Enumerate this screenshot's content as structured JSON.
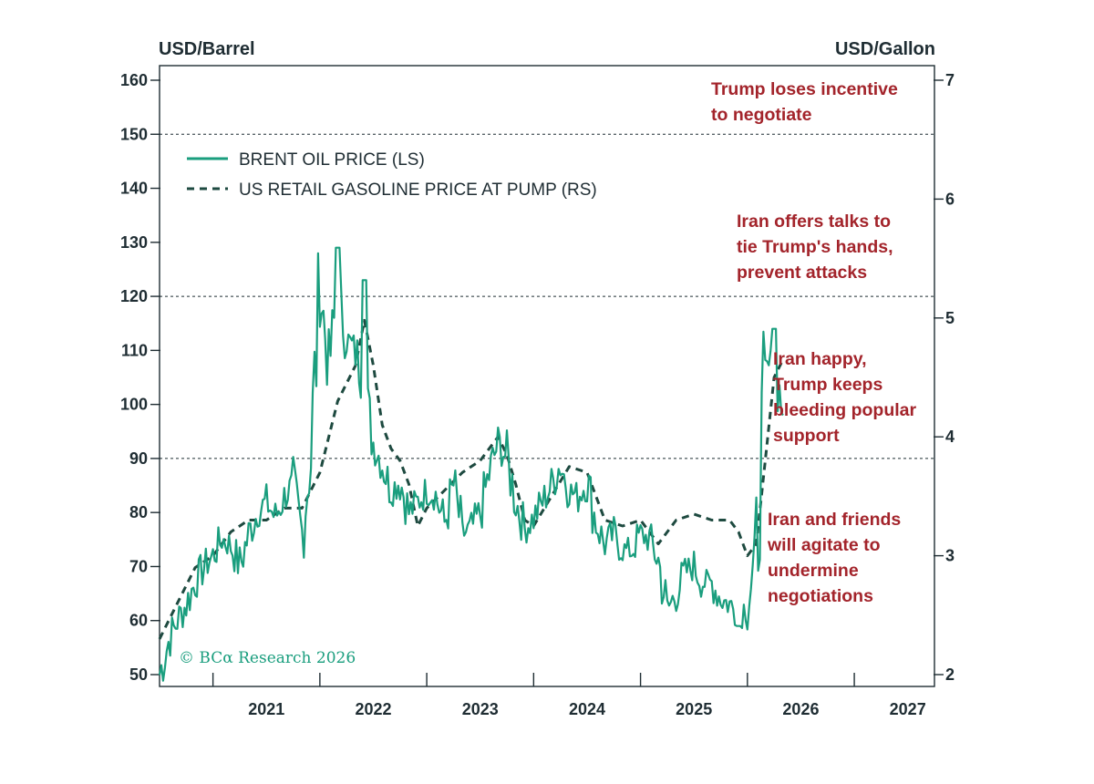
{
  "chart_data": {
    "type": "line",
    "title": "",
    "left_axis": {
      "label": "USD/Barrel",
      "ylim": [
        50,
        162
      ],
      "ticks": [
        50,
        60,
        70,
        80,
        90,
        100,
        110,
        120,
        130,
        140,
        150,
        160
      ],
      "tick_labels": [
        "50",
        "60",
        "70",
        "80",
        "90",
        "100",
        "110",
        "120",
        "130",
        "140",
        "150",
        "160"
      ]
    },
    "right_axis": {
      "label": "USD/Gallon",
      "ylim": [
        2,
        7
      ],
      "ticks": [
        2,
        3,
        4,
        5,
        6,
        7
      ],
      "tick_labels": [
        "2",
        "3",
        "4",
        "5",
        "6",
        "7"
      ]
    },
    "x_axis": {
      "xlim": [
        "2020-07",
        "2027-10"
      ],
      "ticks": [
        "2021-07",
        "2022-07",
        "2023-07",
        "2024-07",
        "2025-07",
        "2026-07",
        "2027-07"
      ],
      "tick_labels": [
        "2021",
        "2022",
        "2023",
        "2024",
        "2025",
        "2026",
        "2027"
      ]
    },
    "reference_lines_left": [
      90,
      120,
      150
    ],
    "legend": {
      "placement": "top-left",
      "entries": [
        "BRENT OIL PRICE (LS)",
        "US RETAIL GASOLINE PRICE AT PUMP (RS)"
      ]
    },
    "colors": {
      "brent": "#1a9e7e",
      "gasoline": "#1e4a40",
      "annotation": "#a3242b",
      "axis": "#1f2d33",
      "gridline": "#1f2d33"
    },
    "series": [
      {
        "name": "BRENT OIL PRICE (LS)",
        "axis": "left",
        "style": "solid",
        "x": [
          "2020-07",
          "2020-08",
          "2020-09",
          "2020-10",
          "2020-11",
          "2020-12",
          "2021-01",
          "2021-02",
          "2021-03",
          "2021-04",
          "2021-05",
          "2021-06",
          "2021-07",
          "2021-08",
          "2021-09",
          "2021-10",
          "2021-11",
          "2021-12",
          "2022-01",
          "2022-02",
          "2022-03",
          "2022-04",
          "2022-05",
          "2022-06",
          "2022-07",
          "2022-08",
          "2022-09",
          "2022-10",
          "2022-11",
          "2022-12",
          "2023-01",
          "2023-02",
          "2023-03",
          "2023-04",
          "2023-05",
          "2023-06",
          "2023-07",
          "2023-08",
          "2023-09",
          "2023-10",
          "2023-11",
          "2023-12",
          "2024-01",
          "2024-02",
          "2024-03",
          "2024-04",
          "2024-05",
          "2024-06",
          "2024-07",
          "2024-08",
          "2024-09",
          "2024-10",
          "2024-11",
          "2024-12",
          "2025-01",
          "2025-02",
          "2025-03",
          "2025-04",
          "2025-05",
          "2025-06",
          "2025-07",
          "2025-08",
          "2025-09",
          "2025-10",
          "2025-11",
          "2025-12",
          "2026-01",
          "2026-02",
          "2026-03",
          "2026-04",
          "2026-05"
        ],
        "values": [
          50,
          56,
          60,
          63,
          67,
          70,
          72,
          75,
          74,
          70,
          76,
          80,
          82,
          79,
          83,
          85,
          76,
          91,
          122,
          107,
          120,
          112,
          110,
          103,
          93,
          89,
          84,
          86,
          80,
          82,
          84,
          83,
          78,
          85,
          76,
          77,
          80,
          87,
          93,
          90,
          82,
          77,
          79,
          82,
          85,
          89,
          84,
          83,
          86,
          78,
          74,
          76,
          73,
          73,
          76,
          75,
          71,
          62,
          65,
          69,
          70,
          67,
          67,
          64,
          63,
          61,
          63,
          72,
          106,
          108,
          98
        ],
        "marks": [
          {
            "x": "2022-03",
            "value": 129
          },
          {
            "x": "2022-06",
            "value": 123
          },
          {
            "x": "2026-04",
            "value": 114
          },
          {
            "x": "2025-12",
            "value": 59
          }
        ]
      },
      {
        "name": "US RETAIL GASOLINE PRICE AT PUMP (RS)",
        "axis": "right",
        "style": "dashed",
        "x": [
          "2020-07",
          "2020-09",
          "2020-11",
          "2021-01",
          "2021-03",
          "2021-05",
          "2021-07",
          "2021-09",
          "2021-11",
          "2022-01",
          "2022-03",
          "2022-05",
          "2022-06",
          "2022-07",
          "2022-08",
          "2022-09",
          "2022-10",
          "2022-11",
          "2022-12",
          "2023-01",
          "2023-03",
          "2023-05",
          "2023-07",
          "2023-09",
          "2023-10",
          "2023-11",
          "2023-12",
          "2024-01",
          "2024-03",
          "2024-05",
          "2024-07",
          "2024-09",
          "2024-11",
          "2025-01",
          "2025-03",
          "2025-05",
          "2025-07",
          "2025-09",
          "2025-11",
          "2025-12",
          "2026-01",
          "2026-02",
          "2026-03",
          "2026-04",
          "2026-05"
        ],
        "values": [
          2.3,
          2.6,
          2.9,
          3.0,
          3.2,
          3.3,
          3.3,
          3.4,
          3.4,
          3.7,
          4.3,
          4.6,
          4.98,
          4.6,
          4.1,
          3.9,
          3.8,
          3.6,
          3.25,
          3.4,
          3.55,
          3.7,
          3.8,
          4.0,
          3.85,
          3.6,
          3.3,
          3.25,
          3.5,
          3.75,
          3.7,
          3.3,
          3.25,
          3.3,
          3.1,
          3.3,
          3.35,
          3.3,
          3.3,
          3.2,
          3.0,
          3.1,
          3.8,
          4.5,
          4.65
        ]
      }
    ],
    "annotations": [
      {
        "lines": [
          "Trump loses incentive",
          "to negotiate"
        ]
      },
      {
        "lines": [
          "Iran offers talks to",
          "tie Trump's hands,",
          "prevent attacks"
        ]
      },
      {
        "lines": [
          "Iran happy,",
          "Trump keeps",
          "bleeding popular",
          "support"
        ]
      },
      {
        "lines": [
          "Iran and friends",
          "will agitate to",
          "undermine",
          "negotiations"
        ]
      }
    ],
    "copyright": "© BCα Research 2026"
  }
}
